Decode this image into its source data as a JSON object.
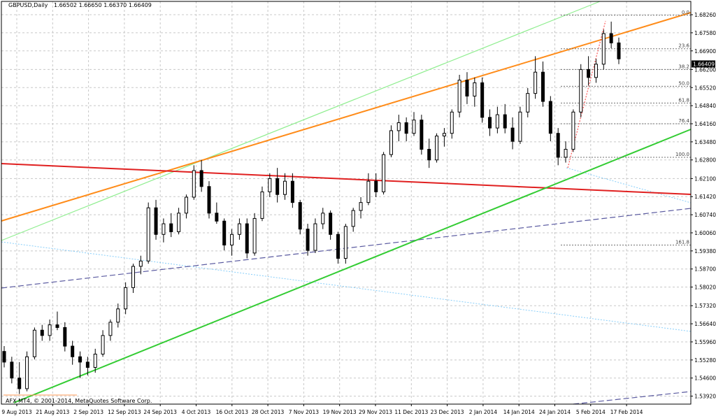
{
  "chart_data": {
    "type": "candlestick",
    "title": {
      "symbol": "GBPUSD,Daily",
      "ohlc": "1.66502 1.66650 1.66370 1.66409"
    },
    "copyright": "AFX MT4, © 2001-2014, MetaQuotes Software Corp.",
    "ylim": [
      1.5362,
      1.6876
    ],
    "y_ticks": [
      "1.68260",
      "1.67580",
      "1.66900",
      "1.66200",
      "1.65520",
      "1.64840",
      "1.64160",
      "1.63480",
      "1.62800",
      "1.62100",
      "1.61420",
      "1.60740",
      "1.60060",
      "1.59380",
      "1.58700",
      "1.58020",
      "1.57320",
      "1.56640",
      "1.55960",
      "1.55280",
      "1.54600",
      "1.53920"
    ],
    "x_labels": [
      "9 Aug 2013",
      "21 Aug 2013",
      "2 Sep 2013",
      "12 Sep 2013",
      "24 Sep 2013",
      "4 Oct 2013",
      "16 Oct 2013",
      "28 Oct 2013",
      "7 Nov 2013",
      "19 Nov 2013",
      "29 Nov 2013",
      "11 Dec 2013",
      "23 Dec 2013",
      "2 Jan 2014",
      "14 Jan 2014",
      "24 Jan 2014",
      "5 Feb 2014",
      "17 Feb 2014"
    ],
    "current_price": "1.66409",
    "fibonacci": [
      {
        "level": "0.0",
        "price": 1.6824
      },
      {
        "level": "23.6",
        "price": 1.6698
      },
      {
        "level": "38.2",
        "price": 1.662
      },
      {
        "level": "50.0",
        "price": 1.6557
      },
      {
        "level": "61.8",
        "price": 1.6494
      },
      {
        "level": "76.4",
        "price": 1.6416
      },
      {
        "level": "100.0",
        "price": 1.629
      },
      {
        "level": "161.8",
        "price": 1.596
      }
    ],
    "candles": [
      [
        1.556,
        1.558,
        1.55,
        1.552
      ],
      [
        1.552,
        1.554,
        1.544,
        1.546
      ],
      [
        1.546,
        1.552,
        1.54,
        1.542
      ],
      [
        1.542,
        1.556,
        1.541,
        1.554
      ],
      [
        1.554,
        1.565,
        1.553,
        1.564
      ],
      [
        1.564,
        1.566,
        1.56,
        1.562
      ],
      [
        1.562,
        1.568,
        1.56,
        1.566
      ],
      [
        1.566,
        1.571,
        1.564,
        1.565
      ],
      [
        1.565,
        1.567,
        1.556,
        1.558
      ],
      [
        1.558,
        1.56,
        1.551,
        1.554
      ],
      [
        1.554,
        1.556,
        1.546,
        1.552
      ],
      [
        1.552,
        1.554,
        1.547,
        1.55
      ],
      [
        1.55,
        1.557,
        1.548,
        1.555
      ],
      [
        1.555,
        1.564,
        1.554,
        1.562
      ],
      [
        1.562,
        1.568,
        1.56,
        1.567
      ],
      [
        1.567,
        1.574,
        1.565,
        1.572
      ],
      [
        1.572,
        1.582,
        1.57,
        1.58
      ],
      [
        1.58,
        1.589,
        1.578,
        1.588
      ],
      [
        1.588,
        1.592,
        1.585,
        1.59
      ],
      [
        1.59,
        1.612,
        1.589,
        1.61
      ],
      [
        1.61,
        1.613,
        1.598,
        1.6
      ],
      [
        1.6,
        1.606,
        1.597,
        1.604
      ],
      [
        1.604,
        1.608,
        1.599,
        1.601
      ],
      [
        1.601,
        1.61,
        1.6,
        1.608
      ],
      [
        1.608,
        1.615,
        1.606,
        1.614
      ],
      [
        1.614,
        1.626,
        1.613,
        1.624
      ],
      [
        1.624,
        1.628,
        1.616,
        1.618
      ],
      [
        1.618,
        1.62,
        1.606,
        1.608
      ],
      [
        1.608,
        1.612,
        1.604,
        1.605
      ],
      [
        1.605,
        1.606,
        1.594,
        1.596
      ],
      [
        1.596,
        1.602,
        1.592,
        1.6
      ],
      [
        1.6,
        1.606,
        1.598,
        1.604
      ],
      [
        1.604,
        1.606,
        1.591,
        1.593
      ],
      [
        1.593,
        1.608,
        1.592,
        1.606
      ],
      [
        1.606,
        1.618,
        1.605,
        1.616
      ],
      [
        1.616,
        1.623,
        1.614,
        1.621
      ],
      [
        1.621,
        1.625,
        1.612,
        1.615
      ],
      [
        1.615,
        1.623,
        1.613,
        1.62
      ],
      [
        1.62,
        1.623,
        1.61,
        1.612
      ],
      [
        1.612,
        1.613,
        1.6,
        1.602
      ],
      [
        1.602,
        1.604,
        1.592,
        1.594
      ],
      [
        1.594,
        1.606,
        1.593,
        1.604
      ],
      [
        1.604,
        1.61,
        1.602,
        1.608
      ],
      [
        1.608,
        1.609,
        1.598,
        1.6
      ],
      [
        1.6,
        1.601,
        1.589,
        1.591
      ],
      [
        1.591,
        1.604,
        1.589,
        1.603
      ],
      [
        1.603,
        1.61,
        1.601,
        1.609
      ],
      [
        1.609,
        1.614,
        1.606,
        1.612
      ],
      [
        1.612,
        1.623,
        1.611,
        1.62
      ],
      [
        1.62,
        1.623,
        1.614,
        1.616
      ],
      [
        1.616,
        1.631,
        1.615,
        1.63
      ],
      [
        1.63,
        1.641,
        1.629,
        1.639
      ],
      [
        1.639,
        1.645,
        1.635,
        1.642
      ],
      [
        1.642,
        1.644,
        1.635,
        1.638
      ],
      [
        1.638,
        1.646,
        1.637,
        1.643
      ],
      [
        1.643,
        1.645,
        1.63,
        1.632
      ],
      [
        1.632,
        1.636,
        1.625,
        1.628
      ],
      [
        1.628,
        1.638,
        1.627,
        1.637
      ],
      [
        1.637,
        1.64,
        1.633,
        1.638
      ],
      [
        1.638,
        1.647,
        1.636,
        1.646
      ],
      [
        1.646,
        1.66,
        1.644,
        1.658
      ],
      [
        1.658,
        1.661,
        1.649,
        1.652
      ],
      [
        1.652,
        1.659,
        1.648,
        1.657
      ],
      [
        1.657,
        1.659,
        1.642,
        1.644
      ],
      [
        1.644,
        1.647,
        1.637,
        1.64
      ],
      [
        1.64,
        1.648,
        1.638,
        1.645
      ],
      [
        1.645,
        1.649,
        1.638,
        1.64
      ],
      [
        1.64,
        1.644,
        1.632,
        1.635
      ],
      [
        1.635,
        1.648,
        1.634,
        1.646
      ],
      [
        1.646,
        1.655,
        1.644,
        1.653
      ],
      [
        1.653,
        1.667,
        1.651,
        1.661
      ],
      [
        1.661,
        1.665,
        1.648,
        1.65
      ],
      [
        1.65,
        1.652,
        1.635,
        1.638
      ],
      [
        1.638,
        1.64,
        1.626,
        1.629
      ],
      [
        1.629,
        1.635,
        1.627,
        1.632
      ],
      [
        1.632,
        1.647,
        1.631,
        1.646
      ],
      [
        1.646,
        1.664,
        1.644,
        1.662
      ],
      [
        1.662,
        1.667,
        1.656,
        1.659
      ],
      [
        1.659,
        1.666,
        1.657,
        1.664
      ],
      [
        1.664,
        1.677,
        1.662,
        1.6755
      ],
      [
        1.6755,
        1.68,
        1.67,
        1.672
      ],
      [
        1.672,
        1.674,
        1.664,
        1.666
      ]
    ]
  }
}
